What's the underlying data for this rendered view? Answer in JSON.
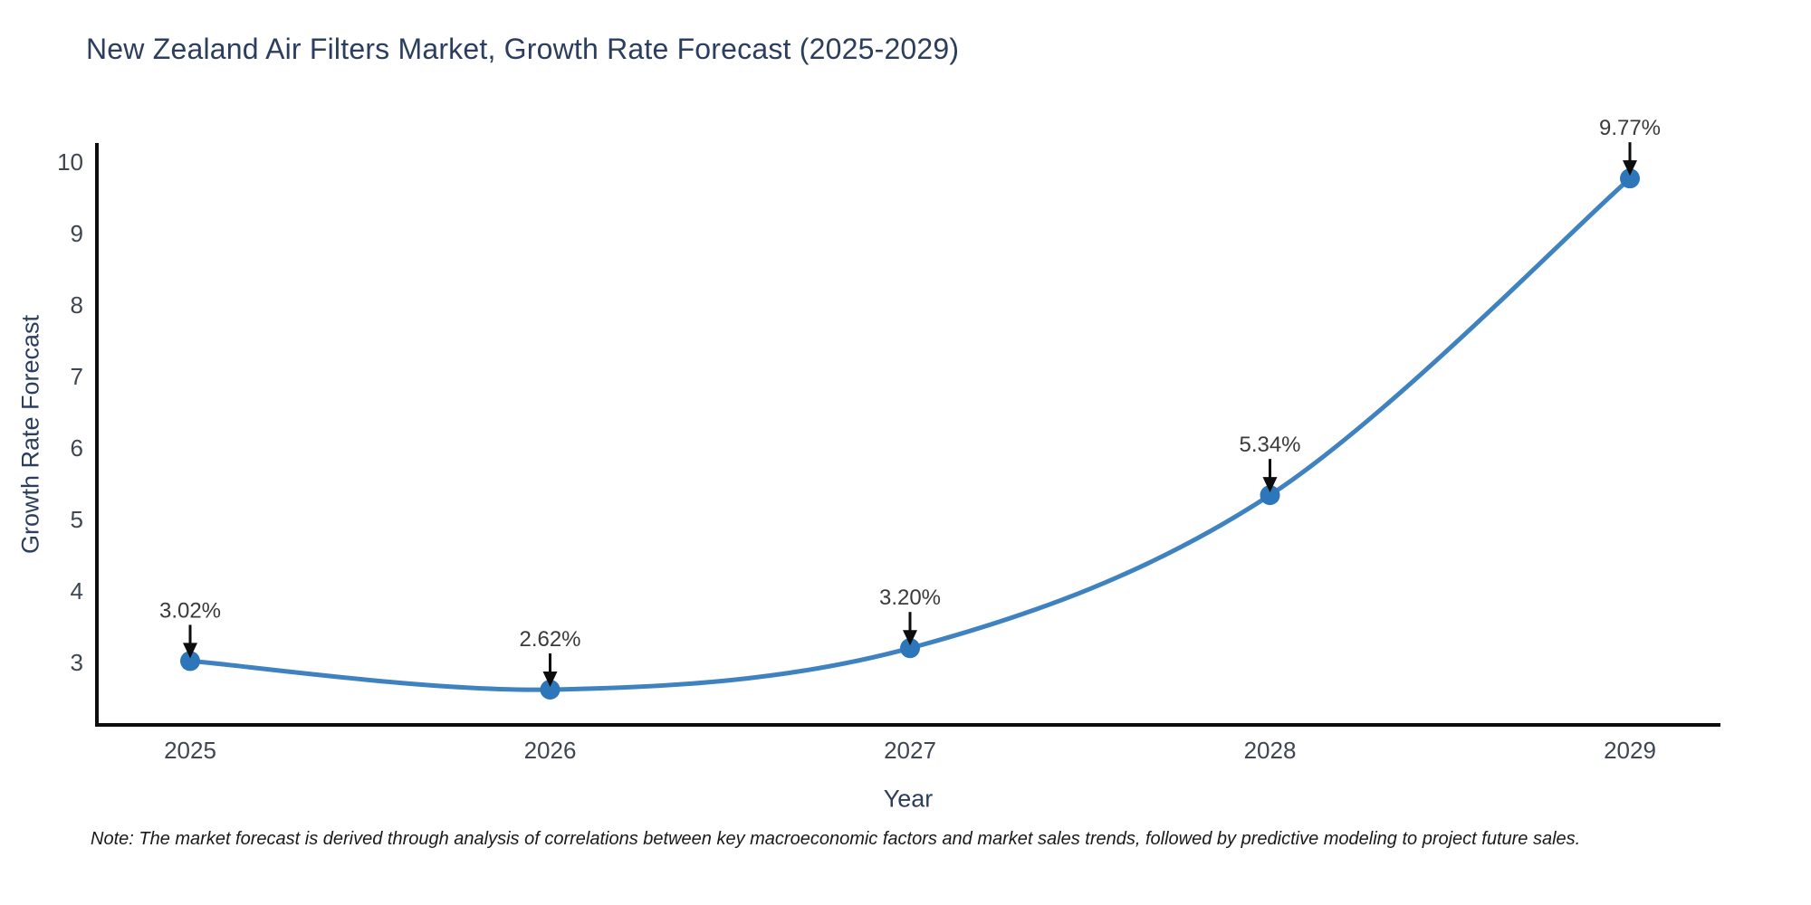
{
  "note": "Note: The market forecast is derived through analysis of correlations between key macroeconomic factors and market sales trends, followed by predictive modeling to project future sales.",
  "colors": {
    "line": "#3f82c0",
    "marker": "#2d76ba",
    "axis": "#0d0d0d",
    "arrow": "#0d0d0d",
    "title": "#2c3e5d",
    "tick": "#3e4652",
    "annotation": "#3a3a3a",
    "background": "#ffffff"
  },
  "chart_data": {
    "type": "line",
    "title": "New Zealand Air Filters Market, Growth Rate Forecast (2025-2029)",
    "xlabel": "Year",
    "ylabel": "Growth Rate Forecast",
    "categories": [
      "2025",
      "2026",
      "2027",
      "2028",
      "2029"
    ],
    "series": [
      {
        "name": "Growth Rate Forecast",
        "values": [
          3.02,
          2.62,
          3.2,
          5.34,
          9.77
        ]
      }
    ],
    "point_labels": [
      "3.02%",
      "2.62%",
      "3.20%",
      "5.34%",
      "9.77%"
    ],
    "y_ticks": [
      3,
      4,
      5,
      6,
      7,
      8,
      9,
      10
    ],
    "ylim": [
      2.15,
      10.25
    ],
    "grid": false,
    "legend": "none",
    "line_shape": "spline",
    "marker": "circle",
    "annotations": "arrow-down-to-point"
  }
}
